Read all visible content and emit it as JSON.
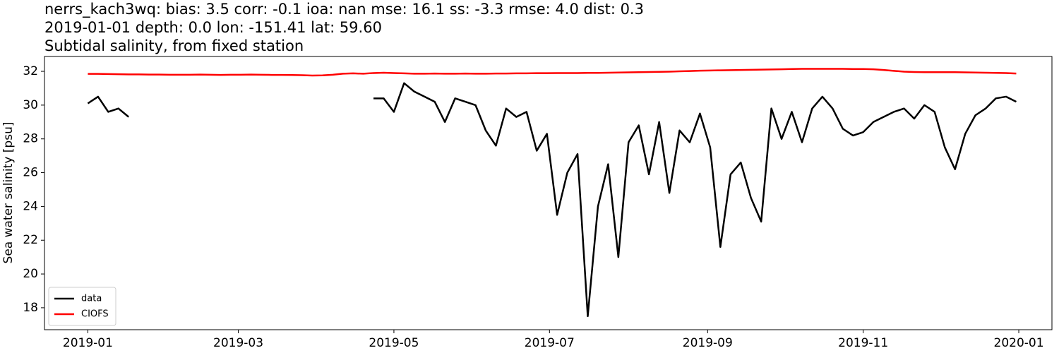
{
  "chart_data": {
    "type": "line",
    "title_lines": [
      "nerrs_kach3wq: bias: 3.5  corr: -0.1  ioa: nan  mse: 16.1  ss: -3.3  rmse: 4.0  dist: 0.3",
      "2019-01-01 depth: 0.0 lon: -151.41 lat: 59.60",
      "Subtidal salinity, from fixed station"
    ],
    "ylabel": "Sea water salinity [psu]",
    "x": [
      "2019-01-01",
      "2019-01-05",
      "2019-01-09",
      "2019-01-13",
      "2019-01-17",
      "2019-01-21",
      "2019-01-25",
      "2019-01-29",
      "2019-02-02",
      "2019-02-06",
      "2019-02-10",
      "2019-02-14",
      "2019-02-18",
      "2019-02-22",
      "2019-02-26",
      "2019-03-02",
      "2019-03-06",
      "2019-03-10",
      "2019-03-14",
      "2019-03-18",
      "2019-03-22",
      "2019-03-26",
      "2019-03-30",
      "2019-04-03",
      "2019-04-07",
      "2019-04-11",
      "2019-04-15",
      "2019-04-19",
      "2019-04-23",
      "2019-04-27",
      "2019-05-01",
      "2019-05-05",
      "2019-05-09",
      "2019-05-13",
      "2019-05-17",
      "2019-05-21",
      "2019-05-25",
      "2019-05-29",
      "2019-06-02",
      "2019-06-06",
      "2019-06-10",
      "2019-06-14",
      "2019-06-18",
      "2019-06-22",
      "2019-06-26",
      "2019-06-30",
      "2019-07-04",
      "2019-07-08",
      "2019-07-12",
      "2019-07-16",
      "2019-07-20",
      "2019-07-24",
      "2019-07-28",
      "2019-08-01",
      "2019-08-05",
      "2019-08-09",
      "2019-08-13",
      "2019-08-17",
      "2019-08-21",
      "2019-08-25",
      "2019-08-29",
      "2019-09-02",
      "2019-09-06",
      "2019-09-10",
      "2019-09-14",
      "2019-09-18",
      "2019-09-22",
      "2019-09-26",
      "2019-09-30",
      "2019-10-04",
      "2019-10-08",
      "2019-10-12",
      "2019-10-16",
      "2019-10-20",
      "2019-10-24",
      "2019-10-28",
      "2019-11-01",
      "2019-11-05",
      "2019-11-09",
      "2019-11-13",
      "2019-11-17",
      "2019-11-21",
      "2019-11-25",
      "2019-11-29",
      "2019-12-03",
      "2019-12-07",
      "2019-12-11",
      "2019-12-15",
      "2019-12-19",
      "2019-12-23",
      "2019-12-27",
      "2019-12-31"
    ],
    "series": [
      {
        "name": "data",
        "color": "#000000",
        "values": [
          30.1,
          30.5,
          29.6,
          29.8,
          29.3,
          null,
          null,
          null,
          null,
          null,
          null,
          null,
          null,
          null,
          null,
          null,
          null,
          null,
          null,
          null,
          null,
          null,
          null,
          null,
          null,
          null,
          null,
          null,
          30.4,
          30.4,
          29.6,
          31.3,
          30.8,
          30.5,
          30.2,
          29.0,
          30.4,
          30.2,
          30.0,
          28.5,
          27.6,
          29.8,
          29.3,
          29.6,
          27.3,
          28.3,
          23.5,
          26.0,
          27.1,
          17.5,
          24.0,
          26.5,
          21.0,
          27.8,
          28.8,
          25.9,
          29.0,
          24.8,
          28.5,
          27.8,
          29.5,
          27.5,
          21.6,
          25.9,
          26.6,
          24.5,
          23.1,
          29.8,
          28.0,
          29.6,
          27.8,
          29.8,
          30.5,
          29.8,
          28.6,
          28.2,
          28.4,
          29.0,
          29.3,
          29.6,
          29.8,
          29.2,
          30.0,
          29.6,
          27.5,
          26.2,
          28.3,
          29.4,
          29.8,
          30.4,
          30.5,
          30.2
        ]
      },
      {
        "name": "CIOFS",
        "color": "#ff0000",
        "values": [
          31.85,
          31.85,
          31.84,
          31.83,
          31.82,
          31.82,
          31.81,
          31.81,
          31.8,
          31.8,
          31.8,
          31.81,
          31.8,
          31.79,
          31.8,
          31.8,
          31.81,
          31.8,
          31.79,
          31.79,
          31.78,
          31.77,
          31.75,
          31.76,
          31.8,
          31.86,
          31.88,
          31.86,
          31.9,
          31.92,
          31.9,
          31.88,
          31.86,
          31.86,
          31.87,
          31.86,
          31.86,
          31.87,
          31.86,
          31.86,
          31.87,
          31.87,
          31.88,
          31.88,
          31.89,
          31.89,
          31.9,
          31.9,
          31.9,
          31.91,
          31.91,
          31.92,
          31.93,
          31.94,
          31.95,
          31.96,
          31.97,
          31.98,
          32.0,
          32.02,
          32.04,
          32.05,
          32.06,
          32.07,
          32.08,
          32.09,
          32.1,
          32.11,
          32.12,
          32.14,
          32.15,
          32.15,
          32.15,
          32.15,
          32.15,
          32.14,
          32.14,
          32.12,
          32.08,
          32.03,
          31.98,
          31.96,
          31.95,
          31.95,
          31.95,
          31.95,
          31.94,
          31.93,
          31.92,
          31.91,
          31.9,
          31.87
        ]
      }
    ],
    "xlim": [
      "2018-12-15",
      "2020-01-14"
    ],
    "xticks": [
      {
        "value": "2019-01-01",
        "label": "2019-01"
      },
      {
        "value": "2019-03-01",
        "label": "2019-03"
      },
      {
        "value": "2019-05-01",
        "label": "2019-05"
      },
      {
        "value": "2019-07-01",
        "label": "2019-07"
      },
      {
        "value": "2019-09-01",
        "label": "2019-09"
      },
      {
        "value": "2019-11-01",
        "label": "2019-11"
      },
      {
        "value": "2020-01-01",
        "label": "2020-01"
      }
    ],
    "ylim": [
      16.7,
      32.88
    ],
    "yticks": [
      18,
      20,
      22,
      24,
      26,
      28,
      30,
      32
    ],
    "legend": "lower left"
  }
}
